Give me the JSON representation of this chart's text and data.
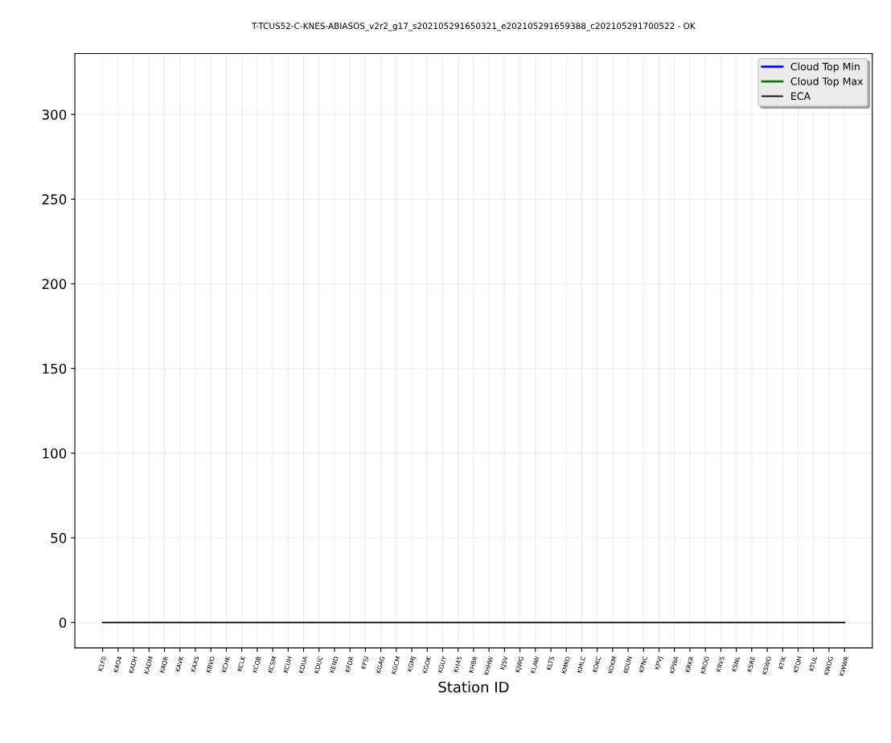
{
  "chart_data": {
    "type": "line",
    "title": "T-TCUS52-C-KNES-ABIASOS_v2r2_g17_s202105291650321_e202105291659388_c202105291700522 - OK",
    "xlabel": "Station ID",
    "categories": [
      "K1F0",
      "K4O4",
      "KADH",
      "KADM",
      "KAQR",
      "KAVK",
      "KAXS",
      "KBVO",
      "KCHK",
      "KCLK",
      "KCQB",
      "KCSM",
      "KCUH",
      "KDUA",
      "KDUC",
      "KEND",
      "KFDR",
      "KFSI",
      "KGAG",
      "KGCM",
      "KGMJ",
      "KGOK",
      "KGUY",
      "KH45",
      "KHBR",
      "KHHW",
      "KJSV",
      "KJWG",
      "KLAW",
      "KLTS",
      "KMKO",
      "KMLC",
      "KOKC",
      "KOKM",
      "KOUN",
      "KPNC",
      "KPVJ",
      "KPWA",
      "KRKR",
      "KROO",
      "KRVS",
      "KSNL",
      "KSRE",
      "KSWO",
      "KTIK",
      "KTQH",
      "KTUL",
      "KWDG",
      "KWWR"
    ],
    "series": [
      {
        "name": "Cloud Top Min",
        "color": "#0000ff",
        "values": [
          null,
          null,
          null,
          null,
          null,
          null,
          null,
          null,
          null,
          null,
          null,
          null,
          null,
          null,
          null,
          null,
          null,
          null,
          null,
          null,
          null,
          null,
          null,
          null,
          null,
          null,
          null,
          null,
          null,
          null,
          null,
          null,
          null,
          null,
          null,
          null,
          null,
          null,
          null,
          null,
          null,
          null,
          null,
          null,
          null,
          null,
          null,
          null,
          null
        ]
      },
      {
        "name": "Cloud Top Max",
        "color": "#008000",
        "values": [
          null,
          null,
          null,
          null,
          null,
          null,
          null,
          null,
          null,
          null,
          null,
          null,
          null,
          null,
          null,
          null,
          null,
          null,
          null,
          null,
          null,
          null,
          null,
          null,
          null,
          null,
          null,
          null,
          null,
          null,
          null,
          null,
          null,
          null,
          null,
          null,
          null,
          null,
          null,
          null,
          null,
          null,
          null,
          null,
          null,
          null,
          null,
          null,
          null
        ]
      },
      {
        "name": "ECA",
        "color": "#000000",
        "values": [
          0,
          0,
          0,
          0,
          0,
          0,
          0,
          0,
          0,
          0,
          0,
          0,
          0,
          0,
          0,
          0,
          0,
          0,
          0,
          0,
          0,
          0,
          0,
          0,
          0,
          0,
          0,
          0,
          0,
          0,
          0,
          0,
          0,
          0,
          0,
          0,
          0,
          0,
          0,
          0,
          0,
          0,
          0,
          0,
          0,
          0,
          0,
          0,
          0
        ]
      }
    ],
    "ylim": [
      -15,
      336
    ],
    "yticks": [
      0,
      50,
      100,
      150,
      200,
      250,
      300
    ],
    "grid": true,
    "legend": "top right"
  }
}
